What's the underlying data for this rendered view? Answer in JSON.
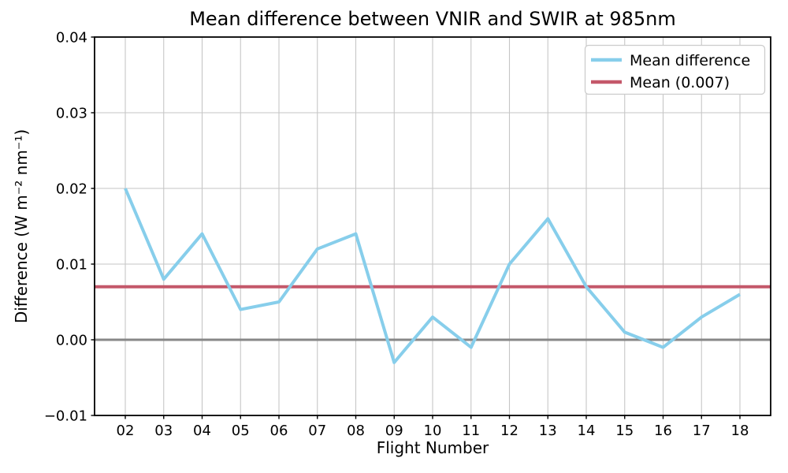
{
  "chart_data": {
    "type": "line",
    "title": "Mean difference between VNIR and SWIR at 985nm",
    "xlabel": "Flight Number",
    "ylabel": "Difference (W m⁻² nm⁻¹)",
    "categories": [
      "02",
      "03",
      "04",
      "05",
      "06",
      "07",
      "08",
      "09",
      "10",
      "11",
      "12",
      "13",
      "14",
      "15",
      "16",
      "17",
      "18"
    ],
    "series": [
      {
        "name": "Mean difference",
        "color": "#87CEEB",
        "values": [
          0.02,
          0.008,
          0.014,
          0.004,
          0.005,
          0.012,
          0.014,
          -0.003,
          0.003,
          -0.001,
          0.01,
          0.016,
          0.007,
          0.001,
          -0.001,
          0.003,
          0.006
        ]
      }
    ],
    "mean_line": {
      "label": "Mean (0.007)",
      "value": 0.007,
      "color": "#C4586A"
    },
    "zero_line": {
      "value": 0.0,
      "color": "#878787"
    },
    "ylim": [
      -0.01,
      0.04
    ],
    "yticks": [
      -0.01,
      0.0,
      0.01,
      0.02,
      0.03,
      0.04
    ],
    "grid": true,
    "legend": {
      "position": "upper right",
      "entries": [
        "Mean difference",
        "Mean (0.007)"
      ]
    }
  }
}
